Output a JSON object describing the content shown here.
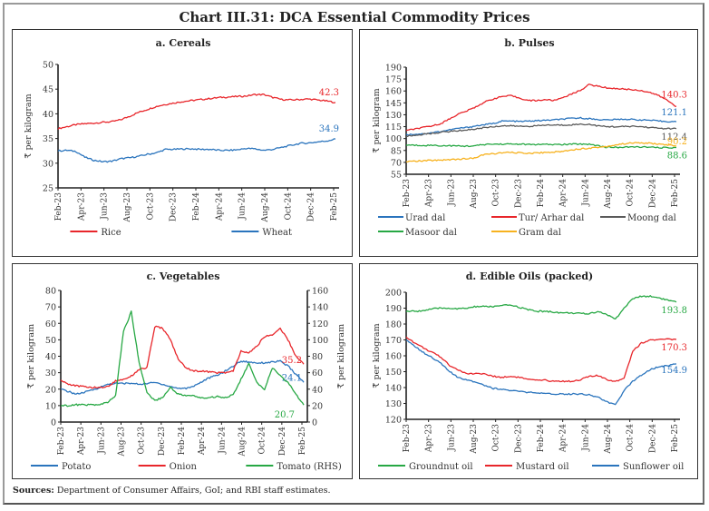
{
  "title": "Chart III.31: DCA Essential Commodity Prices",
  "sources_label": "Sources:",
  "sources_text": "Department of Consumer Affairs, GoI; and RBI staff estimates.",
  "colors": {
    "red": "#e8262b",
    "blue": "#2a74bd",
    "grey": "#5a5a5a",
    "green": "#27a844",
    "orange": "#f7b21f"
  },
  "chart_data": [
    {
      "id": "a",
      "type": "line",
      "title": "a. Cereals",
      "ylabel": "₹ per kilogram",
      "xlabel": "",
      "ylim": [
        25,
        50
      ],
      "yticks": [
        25,
        30,
        35,
        40,
        45,
        50
      ],
      "xticks": [
        "Feb-23",
        "Apr-23",
        "Jun-23",
        "Aug-23",
        "Oct-23",
        "Dec-23",
        "Feb-24",
        "Apr-24",
        "Jun-24",
        "Aug-24",
        "Oct-24",
        "Dec-24",
        "Feb-25"
      ],
      "legend": "bottom",
      "grid": false,
      "series": [
        {
          "name": "Rice",
          "color": "red",
          "end_label": "42.3",
          "values": [
            37.0,
            37.4,
            37.8,
            38.0,
            38.1,
            38.3,
            38.4,
            38.8,
            39.5,
            40.3,
            40.9,
            41.5,
            41.9,
            42.2,
            42.5,
            42.7,
            42.9,
            43.1,
            43.3,
            43.4,
            43.5,
            43.6,
            43.9,
            43.9,
            43.3,
            42.9,
            42.8,
            42.9,
            43.0,
            42.8,
            42.6,
            42.3
          ]
        },
        {
          "name": "Wheat",
          "color": "blue",
          "end_label": "34.9",
          "values": [
            32.5,
            32.6,
            32.4,
            31.2,
            30.6,
            30.3,
            30.4,
            30.9,
            31.1,
            31.4,
            31.8,
            32.1,
            32.8,
            32.8,
            32.9,
            32.9,
            32.8,
            32.8,
            32.6,
            32.6,
            32.7,
            33.0,
            32.9,
            32.6,
            32.8,
            33.2,
            33.6,
            34.0,
            34.1,
            34.3,
            34.5,
            34.9
          ]
        }
      ]
    },
    {
      "id": "b",
      "type": "line",
      "title": "b. Pulses",
      "ylabel": "₹ per kilogram",
      "xlabel": "",
      "ylim": [
        55,
        190
      ],
      "yticks": [
        55,
        70,
        85,
        100,
        115,
        130,
        145,
        160,
        175,
        190
      ],
      "xticks": [
        "Feb-23",
        "Apr-23",
        "Jun-23",
        "Aug-23",
        "Oct-23",
        "Dec-23",
        "Feb-24",
        "Apr-24",
        "Jun-24",
        "Aug-24",
        "Oct-24",
        "Dec-24",
        "Feb-25"
      ],
      "legend": "bottom",
      "grid": false,
      "series": [
        {
          "name": "Urad dal",
          "color": "blue",
          "end_label": "121.1",
          "values": [
            105,
            105.5,
            106,
            107.5,
            109,
            111,
            113,
            114,
            116,
            117.5,
            119,
            122,
            122,
            121.5,
            122,
            122.5,
            123,
            123.5,
            124.5,
            125.5,
            126,
            125,
            124,
            123.5,
            124,
            124.5,
            124,
            123.5,
            123,
            122,
            121.5,
            121.1
          ]
        },
        {
          "name": "Tur/ Arhar dal",
          "color": "red",
          "end_label": "140.3",
          "values": [
            110,
            112,
            114,
            116,
            119,
            125,
            131,
            135,
            140,
            146,
            150,
            153,
            154,
            151,
            148,
            148,
            149,
            148,
            152,
            156,
            161,
            168,
            166,
            164,
            163,
            162.5,
            161.5,
            160.5,
            158,
            154,
            148,
            140.3
          ]
        },
        {
          "name": "Moong dal",
          "color": "grey",
          "end_label": "112.4",
          "values": [
            103,
            104,
            105.5,
            106.5,
            108,
            109,
            110,
            111,
            112,
            114,
            115,
            116,
            116,
            115.5,
            115.5,
            116,
            117,
            117,
            117,
            117.5,
            118,
            118,
            116,
            115,
            115,
            115,
            115.5,
            115,
            114,
            113,
            112.5,
            112.4
          ]
        },
        {
          "name": "Masoor dal",
          "color": "green",
          "end_label": "88.6",
          "values": [
            92,
            91.5,
            91.5,
            91.5,
            91,
            91,
            90.5,
            90.5,
            91,
            92.5,
            93,
            93,
            93,
            93,
            92.5,
            92.5,
            92.5,
            92.5,
            92.5,
            93,
            93,
            93,
            91,
            89,
            89,
            89,
            89.5,
            89.5,
            89,
            88.5,
            88.5,
            88.6
          ]
        },
        {
          "name": "Gram dal",
          "color": "orange",
          "end_label": "90.2",
          "values": [
            71,
            71.5,
            72,
            72.5,
            73,
            73.5,
            74,
            74.5,
            76,
            80,
            81,
            82,
            82.5,
            82,
            81.5,
            82,
            82.5,
            83,
            84,
            86,
            87,
            88,
            89,
            90,
            92,
            93.5,
            94.5,
            94.5,
            94,
            93,
            92,
            90.2
          ]
        }
      ]
    },
    {
      "id": "c",
      "type": "line",
      "title": "c. Vegetables",
      "ylabel": "₹ per kilogram",
      "y2label": "₹ per kilogram",
      "xlabel": "",
      "ylim": [
        0,
        80
      ],
      "yticks": [
        0,
        10,
        20,
        30,
        40,
        50,
        60,
        70,
        80
      ],
      "y2lim": [
        0,
        160
      ],
      "y2ticks": [
        0,
        20,
        40,
        60,
        80,
        100,
        120,
        140,
        160
      ],
      "xticks": [
        "Feb-23",
        "Apr-23",
        "Jun-23",
        "Aug-23",
        "Oct-23",
        "Dec-23",
        "Feb-24",
        "Apr-24",
        "Jun-24",
        "Aug-24",
        "Oct-24",
        "Dec-24",
        "Feb-25"
      ],
      "legend": "bottom",
      "grid": false,
      "series": [
        {
          "name": "Potato",
          "color": "blue",
          "axis": "left",
          "end_label": "24.1",
          "values": [
            20,
            18.5,
            17,
            18,
            19.5,
            21,
            23,
            23.5,
            23.5,
            23.5,
            23,
            23.5,
            24,
            23,
            21.5,
            20.5,
            20.5,
            22,
            24.5,
            27,
            28.5,
            31,
            34,
            37,
            36.5,
            36,
            36,
            36.5,
            37,
            34,
            29,
            24.1
          ]
        },
        {
          "name": "Onion",
          "color": "red",
          "axis": "left",
          "end_label": "35.2",
          "values": [
            25.5,
            23,
            22,
            21.5,
            21,
            21,
            21.5,
            25,
            26,
            28,
            32,
            33,
            58,
            57,
            50,
            38,
            33,
            31,
            31,
            30.5,
            30,
            30,
            31,
            43,
            42,
            46,
            52,
            53,
            57,
            50,
            40,
            35.2
          ]
        },
        {
          "name": "Tomato (RHS)",
          "color": "green",
          "axis": "right",
          "end_label": "20.7",
          "values": [
            20,
            20,
            21,
            21,
            21,
            21,
            24,
            32,
            110,
            134,
            72,
            36,
            26,
            30,
            42,
            34,
            32,
            32,
            29,
            30,
            31,
            30,
            33,
            52,
            71,
            48,
            40,
            66,
            56,
            48,
            34,
            20.7
          ]
        }
      ]
    },
    {
      "id": "d",
      "type": "line",
      "title": "d. Edible Oils (packed)",
      "ylabel": "₹ per kilogram",
      "xlabel": "",
      "ylim": [
        120,
        200
      ],
      "yticks": [
        120,
        130,
        140,
        150,
        160,
        170,
        180,
        190,
        200
      ],
      "xticks": [
        "Feb-23",
        "Apr-23",
        "Jun-23",
        "Aug-23",
        "Oct-23",
        "Dec-23",
        "Feb-24",
        "Apr-24",
        "Jun-24",
        "Aug-24",
        "Oct-24",
        "Dec-24",
        "Feb-25"
      ],
      "legend": "bottom",
      "grid": false,
      "series": [
        {
          "name": "Groundnut oil",
          "color": "green",
          "end_label": "193.8",
          "values": [
            188,
            188,
            188.5,
            189.5,
            190,
            190,
            189.5,
            190,
            191,
            191,
            191,
            191.5,
            192,
            190.5,
            189,
            188,
            188,
            187.5,
            187,
            187,
            186.5,
            186.5,
            188,
            186,
            183,
            190,
            196,
            197.5,
            197.5,
            196.5,
            195,
            193.8
          ]
        },
        {
          "name": "Mustard oil",
          "color": "red",
          "end_label": "170.3",
          "values": [
            172,
            168,
            165,
            162,
            159,
            154,
            151,
            148.5,
            149,
            148.5,
            147,
            146.5,
            147,
            146.5,
            145,
            144.5,
            144.5,
            144,
            144,
            144,
            145,
            147,
            147.5,
            145,
            144,
            146,
            163,
            168,
            170,
            170,
            170.5,
            170.3
          ]
        },
        {
          "name": "Sunflower oil",
          "color": "blue",
          "end_label": "154.9",
          "values": [
            170,
            166,
            162,
            159,
            155,
            150,
            146,
            145,
            143.5,
            141.5,
            139.5,
            139,
            138,
            137.5,
            137,
            136.5,
            136,
            136,
            136,
            136,
            136,
            135.5,
            134,
            131,
            129,
            138,
            144,
            148,
            151.5,
            153,
            154,
            154.9
          ]
        }
      ]
    }
  ]
}
